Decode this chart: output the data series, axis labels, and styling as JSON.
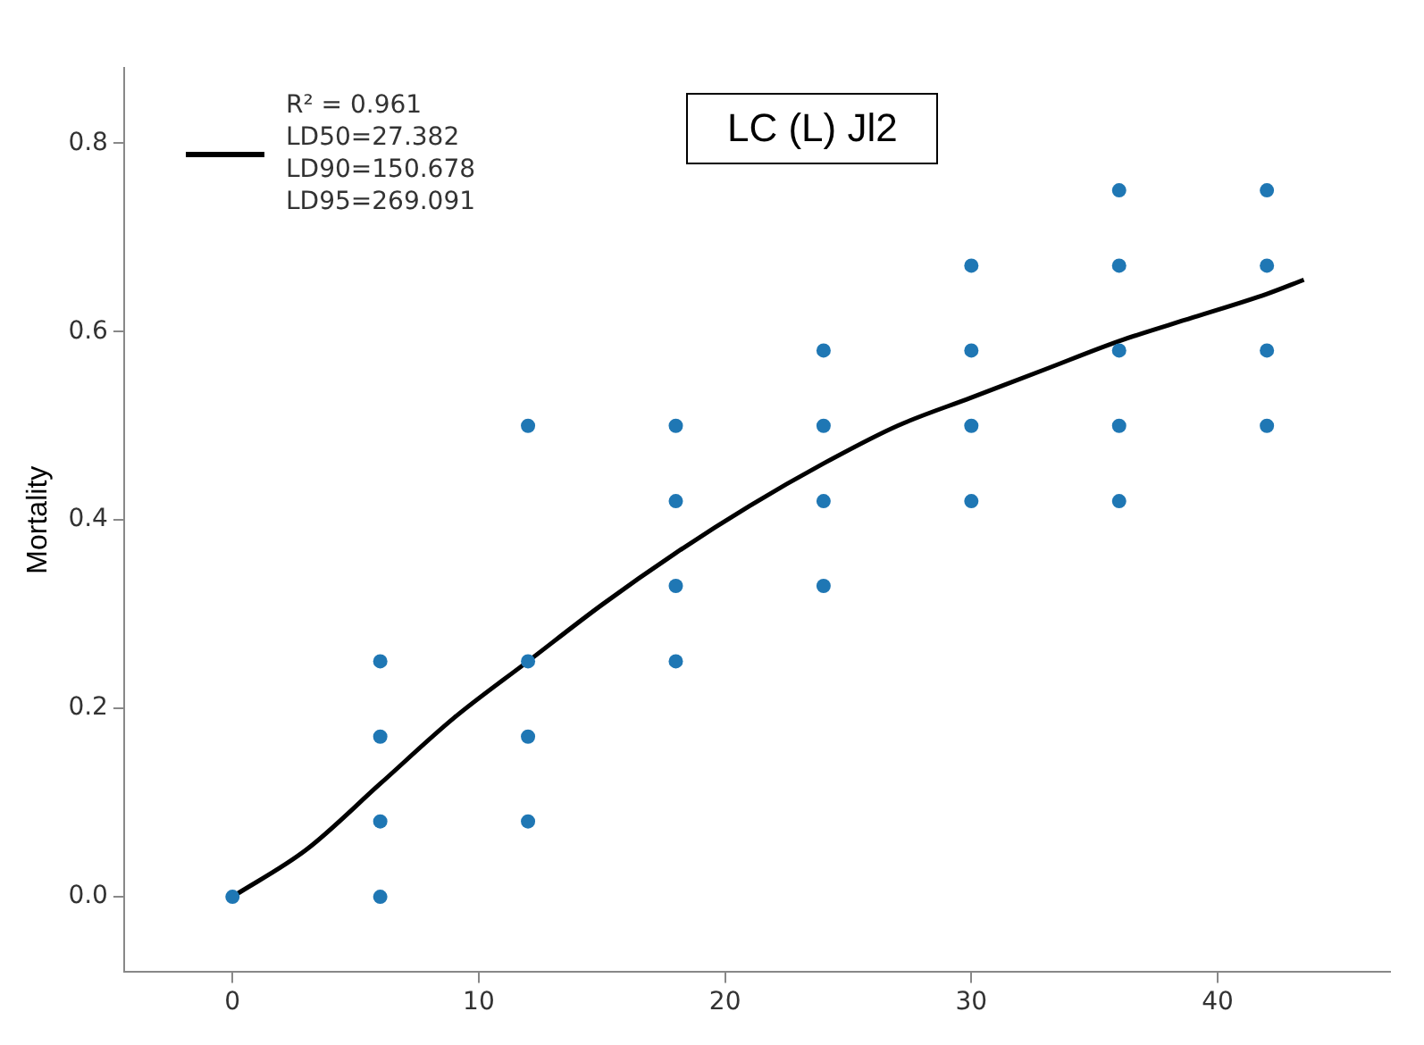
{
  "chart_data": {
    "type": "scatter",
    "ylabel": "Mortality",
    "annotations": [
      "LC (L) Jl2"
    ],
    "xlim": [
      -4.4,
      47
    ],
    "xticks": [
      0,
      10,
      20,
      30,
      40
    ],
    "ylim": [
      -0.08,
      0.88
    ],
    "yticks": [
      {
        "value": 0,
        "label": "0.0"
      },
      {
        "value": 0.2,
        "label": "0.2"
      },
      {
        "value": 0.4,
        "label": "0.4"
      },
      {
        "value": 0.6,
        "label": "0.6"
      },
      {
        "value": 0.8,
        "label": "0.8"
      }
    ],
    "grid": false,
    "legend": "top left",
    "marker": "circle",
    "series": [
      {
        "color": "#1f77b4",
        "x": [
          0,
          6,
          6,
          6,
          6,
          12,
          12,
          12,
          12,
          18,
          18,
          18,
          18,
          24,
          24,
          24,
          24,
          30,
          30,
          30,
          30,
          36,
          36,
          36,
          36,
          36,
          42,
          42,
          42,
          42
        ],
        "values": [
          0,
          0.25,
          0.17,
          0.08,
          0,
          0.5,
          0.25,
          0.17,
          0.08,
          0.5,
          0.42,
          0.33,
          0.25,
          0.58,
          0.5,
          0.42,
          0.33,
          0.67,
          0.58,
          0.5,
          0.42,
          0.75,
          0.67,
          0.58,
          0.5,
          0.42,
          0.75,
          0.67,
          0.58,
          0.5
        ]
      },
      {
        "type": "line",
        "name": "R² = 0.961\nLD50=27.382\nLD90=150.678\nLD95=269.091",
        "color": "#000000",
        "line_style": "solid",
        "marker": "none",
        "x": [
          0,
          3,
          6,
          9,
          12,
          15,
          18,
          21,
          24,
          27,
          30,
          33,
          36,
          39,
          42,
          43.5
        ],
        "values": [
          0,
          0.05,
          0.12,
          0.19,
          0.25,
          0.31,
          0.365,
          0.415,
          0.46,
          0.5,
          0.53,
          0.56,
          0.59,
          0.615,
          0.64,
          0.655
        ]
      }
    ]
  }
}
